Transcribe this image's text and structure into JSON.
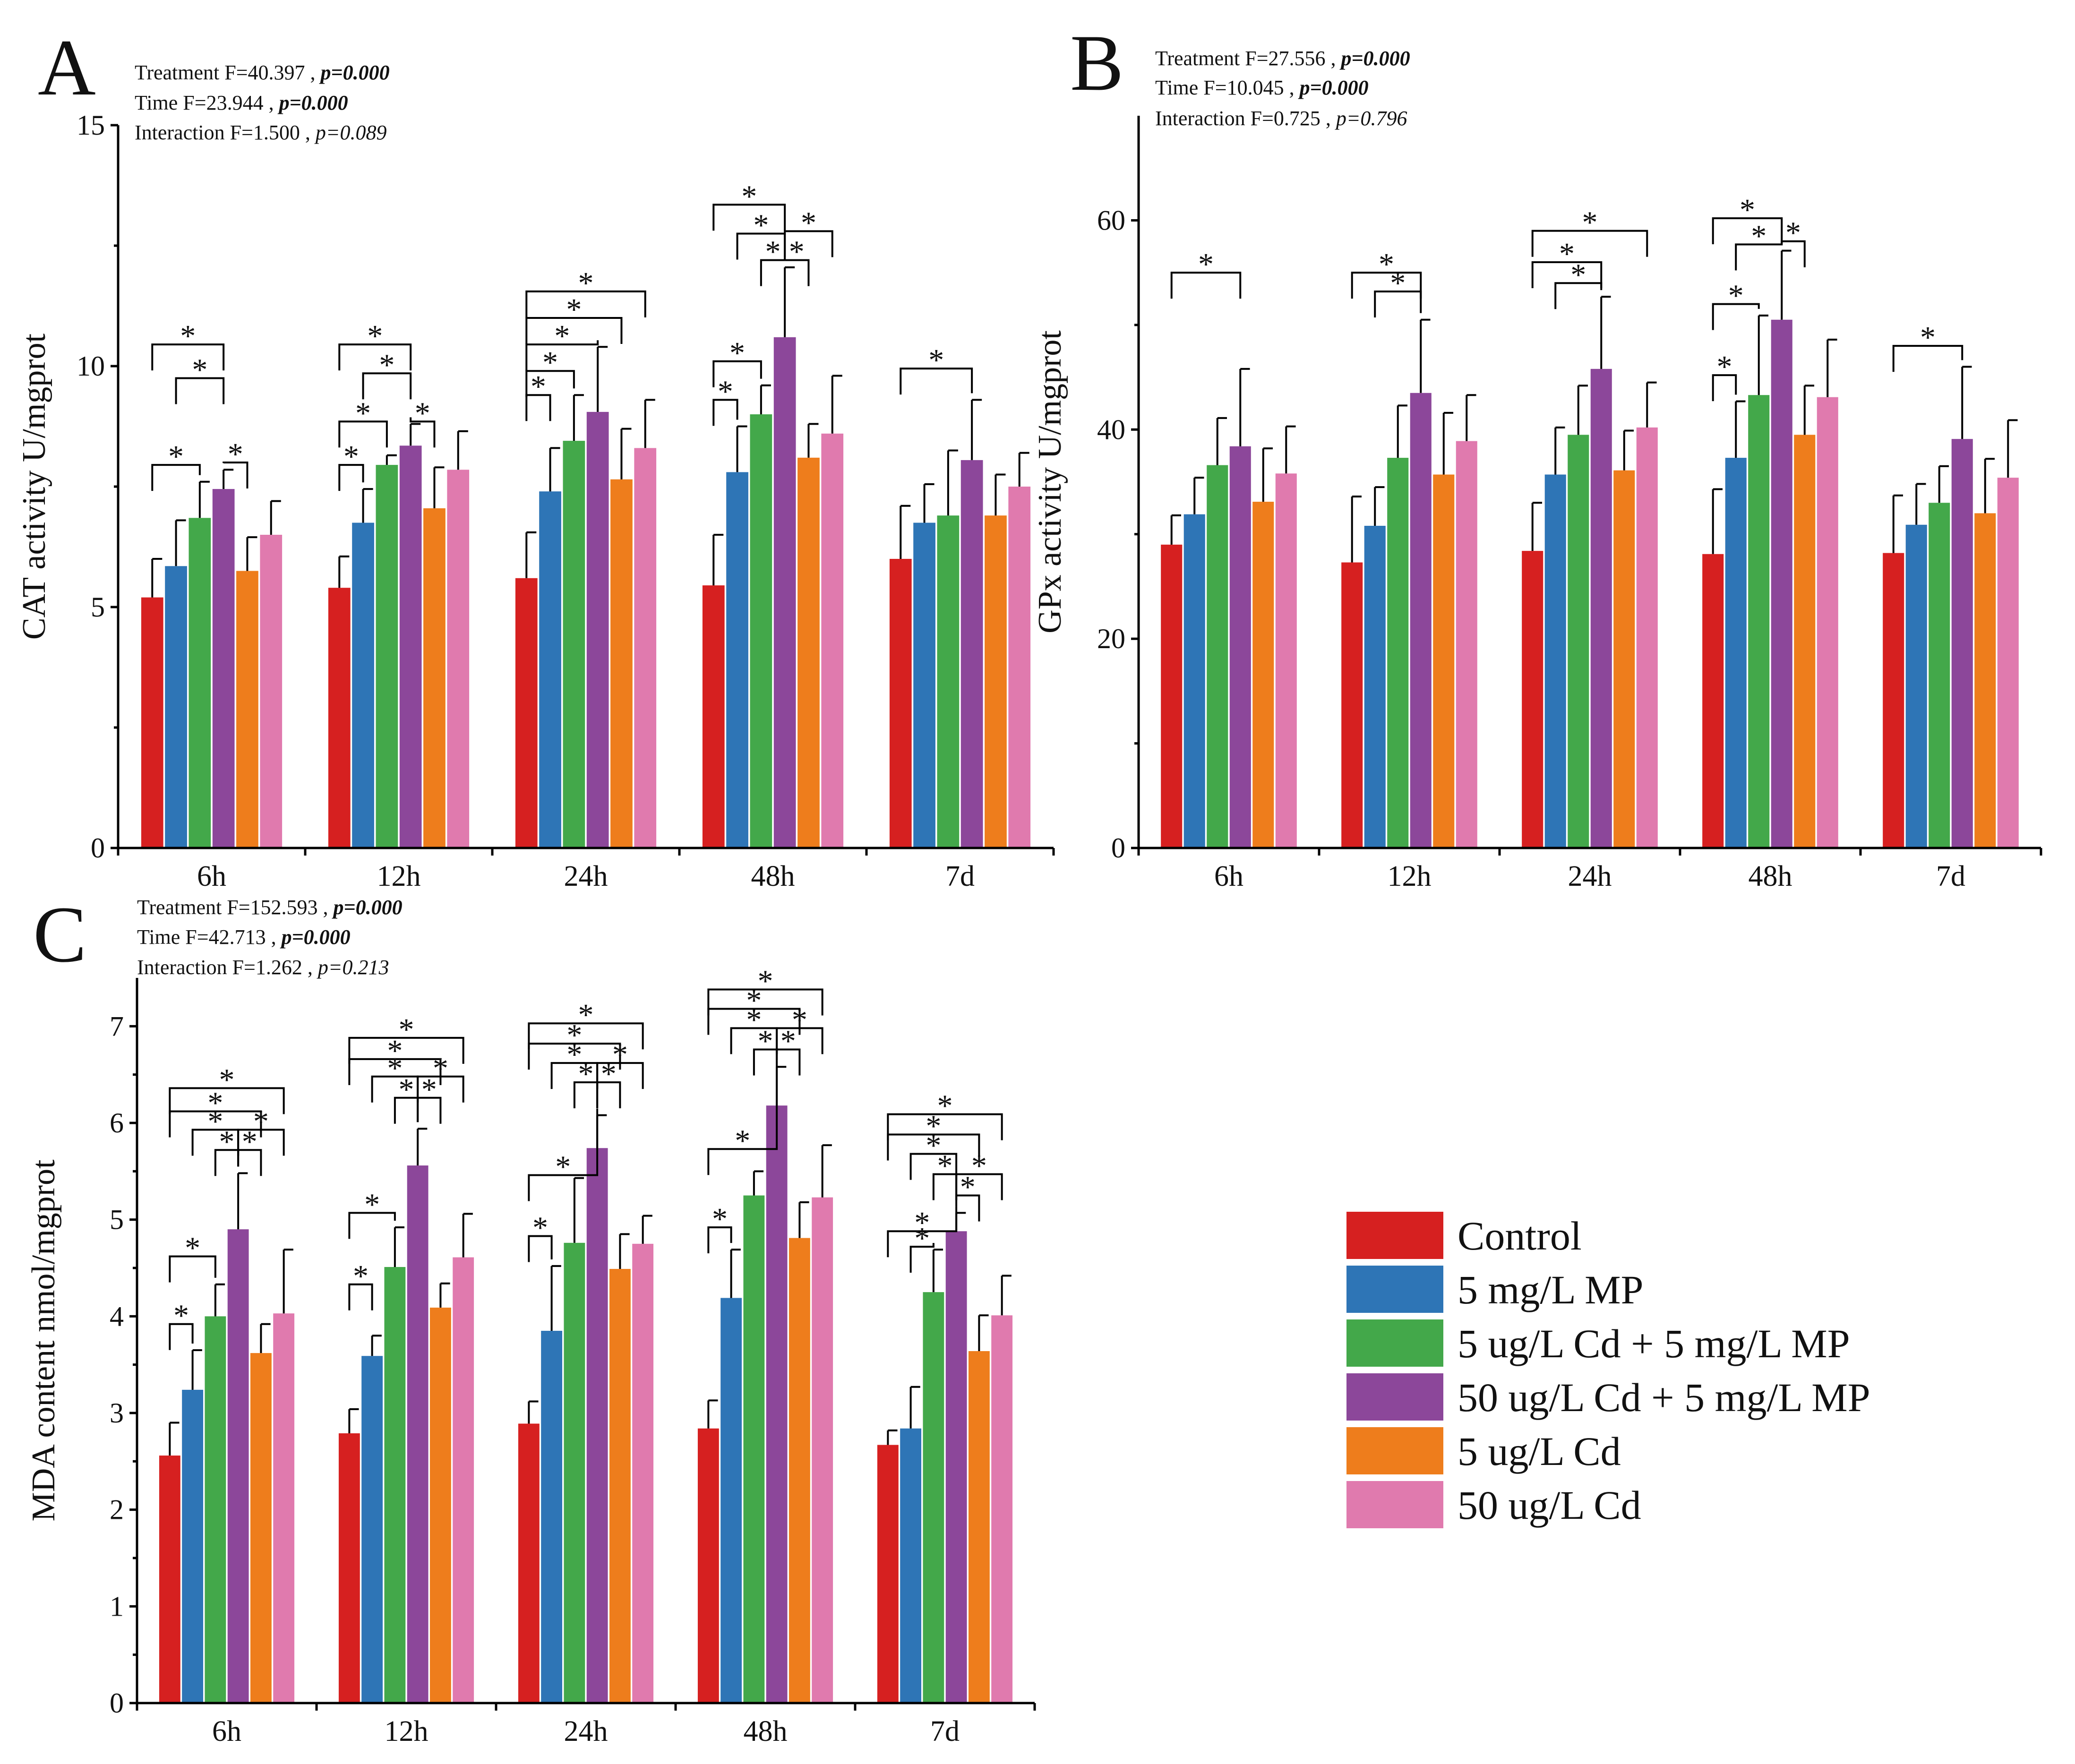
{
  "legend": [
    {
      "label": "Control",
      "color": "#d62020"
    },
    {
      "label": "5 mg/L MP",
      "color": "#2e75b6"
    },
    {
      "label": "5 ug/L Cd + 5 mg/L MP",
      "color": "#43a84a"
    },
    {
      "label": "50 ug/L Cd + 5 mg/L MP",
      "color": "#8c479a"
    },
    {
      "label": "5 ug/L Cd",
      "color": "#ee7d1c"
    },
    {
      "label": "50 ug/L Cd",
      "color": "#e07aae"
    }
  ],
  "chart_data": [
    {
      "panel": "A",
      "type": "bar",
      "ylabel": "CAT activity  U/mgprot",
      "ylim": [
        0,
        15
      ],
      "yticks": [
        0,
        5,
        10,
        15
      ],
      "categories": [
        "6h",
        "12h",
        "24h",
        "48h",
        "7d"
      ],
      "stats": [
        {
          "text": "Treatment F=40.397 , ",
          "p": "p=0.000",
          "bold": true
        },
        {
          "text": "Time F=23.944 , ",
          "p": "p=0.000",
          "bold": true
        },
        {
          "text": "Interaction F=1.500 , ",
          "p": "p=0.089",
          "bold": false
        }
      ],
      "series": [
        {
          "name": "Control",
          "values": [
            5.2,
            5.4,
            5.6,
            5.45,
            6.0
          ],
          "errors": [
            0.8,
            0.65,
            0.95,
            1.05,
            1.1
          ]
        },
        {
          "name": "5 mg/L MP",
          "values": [
            5.85,
            6.75,
            7.4,
            7.8,
            6.75
          ],
          "errors": [
            0.95,
            0.7,
            0.9,
            0.95,
            0.8
          ]
        },
        {
          "name": "5 ug/L Cd + 5 mg/L MP",
          "values": [
            6.85,
            7.95,
            8.45,
            9.0,
            6.9
          ],
          "errors": [
            0.75,
            0.2,
            0.95,
            0.6,
            1.35
          ]
        },
        {
          "name": "50 ug/L Cd + 5 mg/L MP",
          "values": [
            7.45,
            8.35,
            9.05,
            10.6,
            8.05
          ],
          "errors": [
            0.4,
            0.45,
            1.35,
            1.45,
            1.25
          ]
        },
        {
          "name": "5 ug/L Cd",
          "values": [
            5.75,
            7.05,
            7.65,
            8.1,
            6.9
          ],
          "errors": [
            0.7,
            0.85,
            1.05,
            0.7,
            0.85
          ]
        },
        {
          "name": "50 ug/L Cd",
          "values": [
            6.5,
            7.85,
            8.3,
            8.6,
            7.5
          ],
          "errors": [
            0.7,
            0.8,
            1.0,
            1.2,
            0.7
          ]
        }
      ],
      "sig": [
        {
          "g": 0,
          "a": 0,
          "b": 3,
          "y": 10.45
        },
        {
          "g": 0,
          "a": 1,
          "b": 3,
          "y": 9.75
        },
        {
          "g": 0,
          "a": 0,
          "b": 2,
          "y": 7.95
        },
        {
          "g": 0,
          "a": 3,
          "b": 4,
          "y": 8.0
        },
        {
          "g": 1,
          "a": 0,
          "b": 3,
          "y": 10.45
        },
        {
          "g": 1,
          "a": 1,
          "b": 3,
          "y": 9.85
        },
        {
          "g": 1,
          "a": 0,
          "b": 2,
          "y": 8.85
        },
        {
          "g": 1,
          "a": 3,
          "b": 4,
          "y": 8.85
        },
        {
          "g": 1,
          "a": 0,
          "b": 1,
          "y": 7.95
        },
        {
          "g": 2,
          "a": 0,
          "b": 5,
          "y": 11.55
        },
        {
          "g": 2,
          "a": 0,
          "b": 4,
          "y": 11.0
        },
        {
          "g": 2,
          "a": 0,
          "b": 3,
          "y": 10.45
        },
        {
          "g": 2,
          "a": 0,
          "b": 2,
          "y": 9.9
        },
        {
          "g": 2,
          "a": 0,
          "b": 1,
          "y": 9.4
        },
        {
          "g": 3,
          "a": 0,
          "b": 3,
          "y": 13.35
        },
        {
          "g": 3,
          "a": 1,
          "b": 3,
          "y": 12.75
        },
        {
          "g": 3,
          "a": 3,
          "b": 5,
          "y": 12.8
        },
        {
          "g": 3,
          "a": 2,
          "b": 3,
          "y": 12.2
        },
        {
          "g": 3,
          "a": 3,
          "b": 4,
          "y": 12.2
        },
        {
          "g": 3,
          "a": 0,
          "b": 2,
          "y": 10.1
        },
        {
          "g": 3,
          "a": 0,
          "b": 1,
          "y": 9.3
        },
        {
          "g": 4,
          "a": 0,
          "b": 3,
          "y": 9.95
        }
      ]
    },
    {
      "panel": "B",
      "type": "bar",
      "ylabel": "GPx activity  U/mgprot",
      "ylim": [
        0,
        70
      ],
      "yticks": [
        0,
        20,
        40,
        60
      ],
      "categories": [
        "6h",
        "12h",
        "24h",
        "48h",
        "7d"
      ],
      "stats": [
        {
          "text": "Treatment F=27.556 , ",
          "p": "p=0.000",
          "bold": true
        },
        {
          "text": "Time F=10.045 , ",
          "p": "p=0.000",
          "bold": true
        },
        {
          "text": "Interaction F=0.725 , ",
          "p": "p=0.796",
          "bold": false
        }
      ],
      "series": [
        {
          "name": "Control",
          "values": [
            29.0,
            27.3,
            28.4,
            28.1,
            28.2
          ],
          "errors": [
            2.8,
            6.3,
            4.6,
            6.2,
            5.5
          ]
        },
        {
          "name": "5 mg/L MP",
          "values": [
            31.9,
            30.8,
            35.7,
            37.3,
            30.9
          ],
          "errors": [
            3.5,
            3.7,
            4.5,
            5.4,
            3.9
          ]
        },
        {
          "name": "5 ug/L Cd + 5 mg/L MP",
          "values": [
            36.6,
            37.3,
            39.5,
            43.3,
            33.0
          ],
          "errors": [
            4.5,
            5.0,
            4.7,
            7.6,
            3.5
          ]
        },
        {
          "name": "50 ug/L Cd + 5 mg/L MP",
          "values": [
            38.4,
            43.5,
            45.8,
            50.5,
            39.1
          ],
          "errors": [
            7.4,
            7.0,
            6.9,
            6.6,
            6.9
          ]
        },
        {
          "name": "5 ug/L Cd",
          "values": [
            33.1,
            35.7,
            36.1,
            39.5,
            32.0
          ],
          "errors": [
            5.1,
            5.9,
            3.8,
            4.7,
            5.2
          ]
        },
        {
          "name": "50 ug/L Cd",
          "values": [
            35.8,
            38.9,
            40.2,
            43.1,
            35.4
          ],
          "errors": [
            4.5,
            4.4,
            4.3,
            5.5,
            5.5
          ]
        }
      ],
      "sig": [
        {
          "g": 0,
          "a": 0,
          "b": 3,
          "y": 55.0
        },
        {
          "g": 1,
          "a": 0,
          "b": 3,
          "y": 55.0
        },
        {
          "g": 1,
          "a": 1,
          "b": 3,
          "y": 53.2
        },
        {
          "g": 2,
          "a": 0,
          "b": 5,
          "y": 59.0
        },
        {
          "g": 2,
          "a": 0,
          "b": 3,
          "y": 56.0
        },
        {
          "g": 2,
          "a": 1,
          "b": 3,
          "y": 54.0
        },
        {
          "g": 3,
          "a": 0,
          "b": 3,
          "y": 60.2
        },
        {
          "g": 3,
          "a": 1,
          "b": 3,
          "y": 57.7
        },
        {
          "g": 3,
          "a": 3,
          "b": 4,
          "y": 58.0
        },
        {
          "g": 3,
          "a": 0,
          "b": 2,
          "y": 52.0
        },
        {
          "g": 3,
          "a": 0,
          "b": 1,
          "y": 45.2
        },
        {
          "g": 4,
          "a": 0,
          "b": 3,
          "y": 48.0
        }
      ]
    },
    {
      "panel": "C",
      "type": "bar",
      "ylabel": "MDA content  nmol/mgprot",
      "ylim": [
        0,
        7.5
      ],
      "yticks": [
        0,
        1,
        2,
        3,
        4,
        5,
        6,
        7
      ],
      "categories": [
        "6h",
        "12h",
        "24h",
        "48h",
        "7d"
      ],
      "stats": [
        {
          "text": "Treatment F=152.593 , ",
          "p": "p=0.000",
          "bold": true
        },
        {
          "text": "Time F=42.713 , ",
          "p": "p=0.000",
          "bold": true
        },
        {
          "text": "Interaction F=1.262 , ",
          "p": "p=0.213",
          "bold": false
        }
      ],
      "series": [
        {
          "name": "Control",
          "values": [
            2.56,
            2.79,
            2.89,
            2.84,
            2.67
          ],
          "errors": [
            0.34,
            0.25,
            0.23,
            0.29,
            0.15
          ]
        },
        {
          "name": "5 mg/L MP",
          "values": [
            3.24,
            3.59,
            3.85,
            4.19,
            2.84
          ],
          "errors": [
            0.41,
            0.21,
            0.67,
            0.5,
            0.43
          ]
        },
        {
          "name": "5 ug/L Cd + 5 mg/L MP",
          "values": [
            4.0,
            4.51,
            4.76,
            5.25,
            4.25
          ],
          "errors": [
            0.33,
            0.41,
            0.67,
            0.25,
            0.44
          ]
        },
        {
          "name": "50 ug/L Cd + 5 mg/L MP",
          "values": [
            4.9,
            5.56,
            5.74,
            6.18,
            4.88
          ],
          "errors": [
            0.58,
            0.38,
            0.34,
            0.4,
            0.19
          ]
        },
        {
          "name": "5 ug/L Cd",
          "values": [
            3.62,
            4.09,
            4.49,
            4.81,
            3.64
          ],
          "errors": [
            0.3,
            0.25,
            0.36,
            0.37,
            0.37
          ]
        },
        {
          "name": "50 ug/L Cd",
          "values": [
            4.03,
            4.61,
            4.75,
            5.23,
            4.01
          ],
          "errors": [
            0.66,
            0.45,
            0.29,
            0.54,
            0.41
          ]
        }
      ],
      "sig": [
        {
          "g": 0,
          "a": 0,
          "b": 5,
          "y": 6.36
        },
        {
          "g": 0,
          "a": 0,
          "b": 4,
          "y": 6.12
        },
        {
          "g": 0,
          "a": 1,
          "b": 3,
          "y": 5.93
        },
        {
          "g": 0,
          "a": 3,
          "b": 5,
          "y": 5.93
        },
        {
          "g": 0,
          "a": 2,
          "b": 3,
          "y": 5.72
        },
        {
          "g": 0,
          "a": 3,
          "b": 4,
          "y": 5.72
        },
        {
          "g": 0,
          "a": 0,
          "b": 2,
          "y": 4.62
        },
        {
          "g": 0,
          "a": 0,
          "b": 1,
          "y": 3.92
        },
        {
          "g": 1,
          "a": 0,
          "b": 5,
          "y": 6.88
        },
        {
          "g": 1,
          "a": 0,
          "b": 4,
          "y": 6.66
        },
        {
          "g": 1,
          "a": 1,
          "b": 3,
          "y": 6.48
        },
        {
          "g": 1,
          "a": 3,
          "b": 5,
          "y": 6.48
        },
        {
          "g": 1,
          "a": 2,
          "b": 3,
          "y": 6.26
        },
        {
          "g": 1,
          "a": 3,
          "b": 4,
          "y": 6.26
        },
        {
          "g": 1,
          "a": 0,
          "b": 2,
          "y": 5.07
        },
        {
          "g": 1,
          "a": 0,
          "b": 1,
          "y": 4.33
        },
        {
          "g": 2,
          "a": 0,
          "b": 5,
          "y": 7.03
        },
        {
          "g": 2,
          "a": 0,
          "b": 4,
          "y": 6.82
        },
        {
          "g": 2,
          "a": 1,
          "b": 3,
          "y": 6.62
        },
        {
          "g": 2,
          "a": 3,
          "b": 5,
          "y": 6.62
        },
        {
          "g": 2,
          "a": 2,
          "b": 3,
          "y": 6.42
        },
        {
          "g": 2,
          "a": 3,
          "b": 4,
          "y": 6.42
        },
        {
          "g": 2,
          "a": 0,
          "b": 3,
          "y": 5.46
        },
        {
          "g": 2,
          "a": 0,
          "b": 1,
          "y": 4.83
        },
        {
          "g": 3,
          "a": 0,
          "b": 5,
          "y": 7.38
        },
        {
          "g": 3,
          "a": 0,
          "b": 4,
          "y": 7.18
        },
        {
          "g": 3,
          "a": 1,
          "b": 3,
          "y": 6.98
        },
        {
          "g": 3,
          "a": 3,
          "b": 5,
          "y": 6.98
        },
        {
          "g": 3,
          "a": 2,
          "b": 3,
          "y": 6.76
        },
        {
          "g": 3,
          "a": 3,
          "b": 4,
          "y": 6.76
        },
        {
          "g": 3,
          "a": 0,
          "b": 3,
          "y": 5.73
        },
        {
          "g": 3,
          "a": 0,
          "b": 1,
          "y": 4.92
        },
        {
          "g": 4,
          "a": 0,
          "b": 5,
          "y": 6.09
        },
        {
          "g": 4,
          "a": 0,
          "b": 4,
          "y": 5.88
        },
        {
          "g": 4,
          "a": 1,
          "b": 3,
          "y": 5.68
        },
        {
          "g": 4,
          "a": 3,
          "b": 5,
          "y": 5.47
        },
        {
          "g": 4,
          "a": 2,
          "b": 3,
          "y": 5.47
        },
        {
          "g": 4,
          "a": 3,
          "b": 4,
          "y": 5.25
        },
        {
          "g": 4,
          "a": 0,
          "b": 3,
          "y": 4.88
        },
        {
          "g": 4,
          "a": 1,
          "b": 2,
          "y": 4.72
        }
      ]
    }
  ]
}
